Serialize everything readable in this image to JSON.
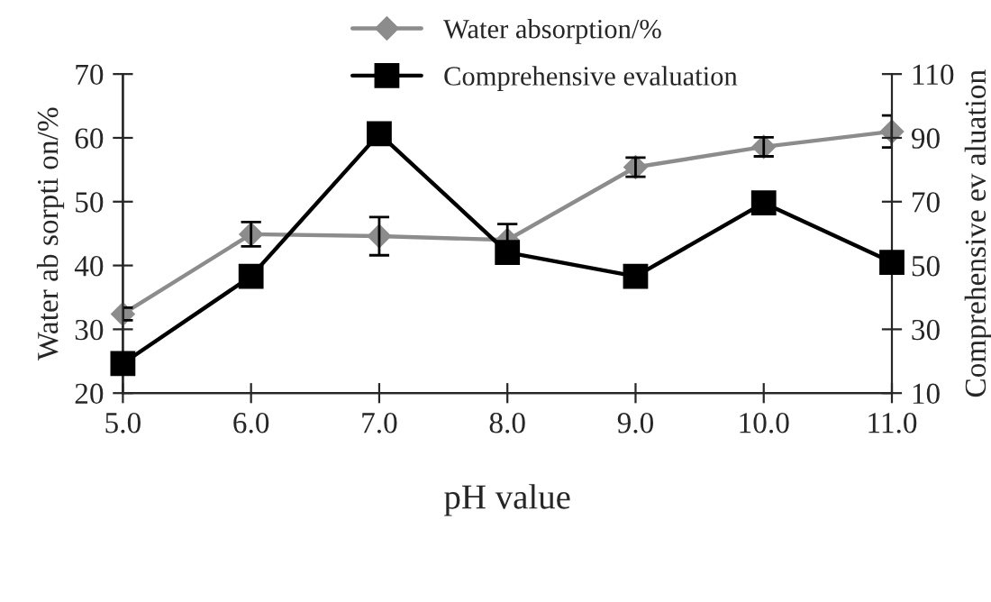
{
  "chart_data": {
    "type": "line",
    "xlabel": "pH value",
    "ylabel": "Water ab sorpti on/%",
    "y2label": "Comprehensive ev aluation",
    "x": [
      5,
      6,
      7,
      8,
      9,
      10,
      11
    ],
    "xlim": [
      5,
      11
    ],
    "xticks": [
      {
        "value": 5,
        "label": "5.0"
      },
      {
        "value": 6,
        "label": "6.0"
      },
      {
        "value": 7,
        "label": "7.0"
      },
      {
        "value": 8,
        "label": "8.0"
      },
      {
        "value": 9,
        "label": "9.0"
      },
      {
        "value": 10,
        "label": "10.0"
      },
      {
        "value": 11,
        "label": "11.0"
      }
    ],
    "ylim": [
      20,
      70
    ],
    "yticks": [
      20,
      30,
      40,
      50,
      60,
      70
    ],
    "y2lim": [
      10,
      110
    ],
    "y2ticks": [
      10,
      30,
      50,
      70,
      90,
      110
    ],
    "series": [
      {
        "name": "Water absorption/%",
        "color": "#8c8c8c",
        "marker": "diamond",
        "values": [
          32.4,
          44.9,
          44.6,
          44,
          55.4,
          58.6,
          61
        ],
        "errors": [
          1,
          1.9,
          3,
          2.5,
          1.5,
          1.5,
          2.5
        ]
      },
      {
        "name": "Comprehensive evaluation",
        "color": "#000000",
        "marker": "square",
        "axis": "y2",
        "values": [
          19.3,
          46.6,
          91.3,
          54.1,
          46.6,
          69.6,
          51
        ],
        "errors": [
          1.5,
          1.5,
          1.5,
          2,
          3,
          1.5,
          1.5
        ]
      }
    ],
    "legend": "top",
    "grid": false
  }
}
